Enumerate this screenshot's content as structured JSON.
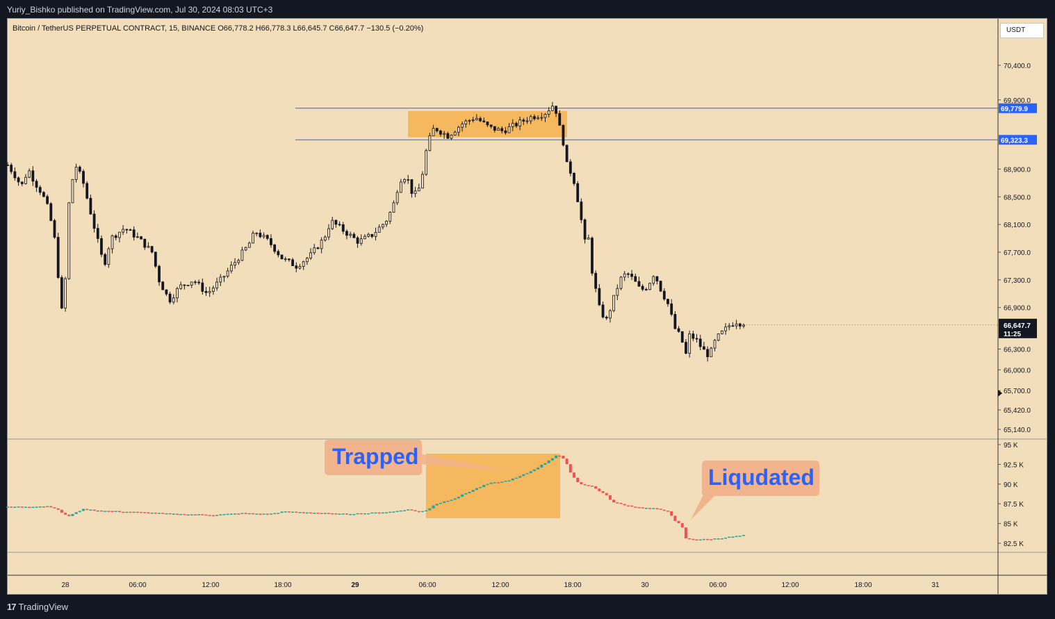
{
  "header": {
    "publisher_line": "Yuriy_Bishko published on TradingView.com, Jul 30, 2024 08:03 UTC+3"
  },
  "symbol": {
    "line": "Bitcoin / TetherUS PERPETUAL CONTRACT, 15, BINANCE  O66,778.2  H66,778.3  L66,645.7  C66,647.7  −130.5 (−0.20%)"
  },
  "currency": "USDT",
  "footer": {
    "brand": "TradingView",
    "brand_mark": "17"
  },
  "colors": {
    "background": "#f2deba",
    "up_candle": "#26a69a",
    "down_candle": "#ef5350",
    "level_line": "#2962ff",
    "zone": "#f7b24e",
    "callout": "#f2b48c"
  },
  "chart_data": [
    {
      "type": "candlestick",
      "instrument": "BTCUSDT.P",
      "interval": "15",
      "y_ticks": [
        65140,
        65420,
        65700,
        66000,
        66300,
        66900,
        67300,
        67700,
        68100,
        68500,
        68900,
        69900,
        70400
      ],
      "ylim": [
        65000,
        70700
      ],
      "x_ticks": [
        "28",
        "06:00",
        "12:00",
        "18:00",
        "29",
        "06:00",
        "12:00",
        "18:00",
        "30",
        "06:00",
        "12:00",
        "18:00",
        "31"
      ],
      "last_price": {
        "label": "66,647.7",
        "value": 66647.7,
        "countdown": "11:25"
      },
      "levels": [
        {
          "label": "69,779.9",
          "value": 69779.9
        },
        {
          "label": "69,323.3",
          "value": 69323.3
        }
      ],
      "zone": {
        "from": 69360,
        "to": 69740
      },
      "close_path": [
        [
          0,
          68960
        ],
        [
          0.01,
          68820
        ],
        [
          0.02,
          68650
        ],
        [
          0.03,
          68900
        ],
        [
          0.04,
          68700
        ],
        [
          0.05,
          68550
        ],
        [
          0.06,
          68300
        ],
        [
          0.07,
          67800
        ],
        [
          0.078,
          66800
        ],
        [
          0.085,
          67400
        ],
        [
          0.09,
          68600
        ],
        [
          0.1,
          68950
        ],
        [
          0.11,
          68700
        ],
        [
          0.12,
          68300
        ],
        [
          0.13,
          67900
        ],
        [
          0.14,
          67500
        ],
        [
          0.15,
          67900
        ],
        [
          0.17,
          68050
        ],
        [
          0.19,
          67900
        ],
        [
          0.21,
          67700
        ],
        [
          0.22,
          67300
        ],
        [
          0.235,
          67000
        ],
        [
          0.25,
          67200
        ],
        [
          0.27,
          67300
        ],
        [
          0.29,
          67100
        ],
        [
          0.31,
          67300
        ],
        [
          0.33,
          67550
        ],
        [
          0.35,
          67800
        ],
        [
          0.36,
          68000
        ],
        [
          0.38,
          67850
        ],
        [
          0.4,
          67600
        ],
        [
          0.42,
          67500
        ],
        [
          0.44,
          67650
        ],
        [
          0.46,
          67900
        ],
        [
          0.47,
          68150
        ],
        [
          0.49,
          68000
        ],
        [
          0.51,
          67850
        ],
        [
          0.53,
          67950
        ],
        [
          0.55,
          68150
        ],
        [
          0.56,
          68350
        ],
        [
          0.57,
          68750
        ],
        [
          0.58,
          68800
        ],
        [
          0.59,
          68500
        ],
        [
          0.6,
          68650
        ],
        [
          0.61,
          69250
        ],
        [
          0.62,
          69500
        ],
        [
          0.64,
          69380
        ],
        [
          0.66,
          69550
        ],
        [
          0.68,
          69650
        ],
        [
          0.7,
          69500
        ],
        [
          0.72,
          69450
        ],
        [
          0.74,
          69550
        ],
        [
          0.76,
          69650
        ],
        [
          0.78,
          69700
        ],
        [
          0.795,
          69850
        ],
        [
          0.8,
          69600
        ],
        [
          0.81,
          69200
        ],
        [
          0.815,
          68800
        ],
        [
          0.82,
          68900
        ],
        [
          0.83,
          68400
        ],
        [
          0.835,
          68100
        ],
        [
          0.84,
          67800
        ],
        [
          0.845,
          67900
        ],
        [
          0.85,
          67400
        ],
        [
          0.86,
          66900
        ],
        [
          0.87,
          66700
        ],
        [
          0.88,
          67000
        ],
        [
          0.89,
          67300
        ],
        [
          0.9,
          67400
        ],
        [
          0.91,
          67300
        ],
        [
          0.92,
          67150
        ],
        [
          0.93,
          67200
        ],
        [
          0.94,
          67400
        ],
        [
          0.95,
          67150
        ],
        [
          0.96,
          66950
        ],
        [
          0.97,
          66600
        ],
        [
          0.98,
          66450
        ],
        [
          0.985,
          66150
        ],
        [
          0.99,
          66500
        ],
        [
          1.0,
          66450
        ],
        [
          1.01,
          66300
        ],
        [
          1.02,
          66200
        ],
        [
          1.03,
          66450
        ],
        [
          1.04,
          66550
        ],
        [
          1.05,
          66650
        ],
        [
          1.06,
          66700
        ],
        [
          1.07,
          66648
        ]
      ],
      "x_domain_note": ""
    },
    {
      "type": "bar",
      "name": "Open Interest",
      "y_ticks_labels": [
        "95 K",
        "92.5 K",
        "90 K",
        "87.5 K",
        "85 K",
        "82.5 K"
      ],
      "y_ticks": [
        95000,
        92500,
        90000,
        87500,
        85000,
        82500
      ],
      "ylim": [
        81000,
        95800
      ],
      "path": [
        [
          0,
          87100
        ],
        [
          0.06,
          87200
        ],
        [
          0.07,
          86900
        ],
        [
          0.08,
          86300
        ],
        [
          0.09,
          85900
        ],
        [
          0.1,
          86500
        ],
        [
          0.11,
          86800
        ],
        [
          0.14,
          86600
        ],
        [
          0.2,
          86400
        ],
        [
          0.24,
          86200
        ],
        [
          0.3,
          86100
        ],
        [
          0.34,
          86300
        ],
        [
          0.38,
          86200
        ],
        [
          0.4,
          86500
        ],
        [
          0.44,
          86400
        ],
        [
          0.48,
          86200
        ],
        [
          0.52,
          86300
        ],
        [
          0.56,
          86500
        ],
        [
          0.58,
          86800
        ],
        [
          0.6,
          86500
        ],
        [
          0.61,
          86700
        ],
        [
          0.62,
          87400
        ],
        [
          0.65,
          88200
        ],
        [
          0.68,
          89400
        ],
        [
          0.7,
          90100
        ],
        [
          0.72,
          90300
        ],
        [
          0.74,
          90800
        ],
        [
          0.76,
          91600
        ],
        [
          0.78,
          92600
        ],
        [
          0.8,
          93800
        ],
        [
          0.81,
          93000
        ],
        [
          0.82,
          91200
        ],
        [
          0.83,
          90100
        ],
        [
          0.85,
          89700
        ],
        [
          0.87,
          88600
        ],
        [
          0.88,
          87700
        ],
        [
          0.9,
          87300
        ],
        [
          0.92,
          87000
        ],
        [
          0.94,
          86900
        ],
        [
          0.96,
          86600
        ],
        [
          0.97,
          85300
        ],
        [
          0.98,
          84800
        ],
        [
          0.985,
          83100
        ],
        [
          1.0,
          83000
        ],
        [
          1.02,
          83000
        ],
        [
          1.04,
          83200
        ],
        [
          1.06,
          83400
        ],
        [
          1.07,
          83500
        ]
      ]
    }
  ],
  "annotations": {
    "trapped": "Trapped",
    "liquidated": "Liqudated"
  }
}
